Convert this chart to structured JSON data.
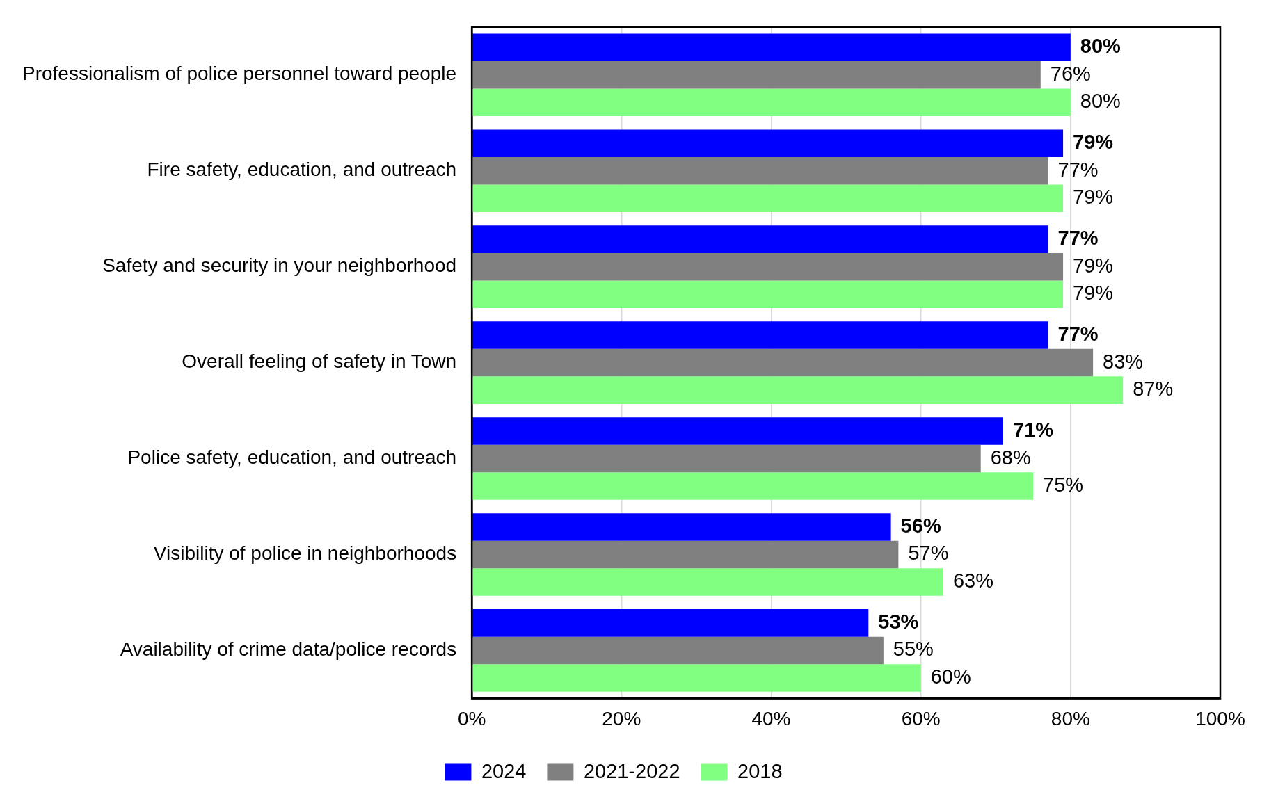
{
  "chart_data": {
    "type": "bar",
    "orientation": "horizontal",
    "categories": [
      "Professionalism of police personnel toward people",
      "Fire safety, education, and outreach",
      "Safety and security in your neighborhood",
      "Overall feeling of safety in Town",
      "Police safety, education, and outreach",
      "Visibility of police in neighborhoods",
      "Availability of crime data/police records"
    ],
    "series": [
      {
        "name": "2024",
        "color": "#0000ff",
        "values": [
          80,
          79,
          77,
          77,
          71,
          56,
          53
        ],
        "value_labels": [
          "80%",
          "79%",
          "77%",
          "77%",
          "71%",
          "56%",
          "53%"
        ]
      },
      {
        "name": "2021-2022",
        "color": "#808080",
        "values": [
          76,
          77,
          79,
          83,
          68,
          57,
          55
        ],
        "value_labels": [
          "76%",
          "77%",
          "79%",
          "83%",
          "68%",
          "57%",
          "55%"
        ]
      },
      {
        "name": "2018",
        "color": "#80ff80",
        "values": [
          80,
          79,
          79,
          87,
          75,
          63,
          60
        ],
        "value_labels": [
          "80%",
          "79%",
          "79%",
          "87%",
          "75%",
          "63%",
          "60%"
        ]
      }
    ],
    "xlim": [
      0,
      100
    ],
    "xticks": [
      {
        "value": 0,
        "label": "0%"
      },
      {
        "value": 20,
        "label": "20%"
      },
      {
        "value": 40,
        "label": "40%"
      },
      {
        "value": 60,
        "label": "60%"
      },
      {
        "value": 80,
        "label": "80%"
      },
      {
        "value": 100,
        "label": "100%"
      }
    ],
    "grid": "x",
    "legend": "bottom"
  }
}
